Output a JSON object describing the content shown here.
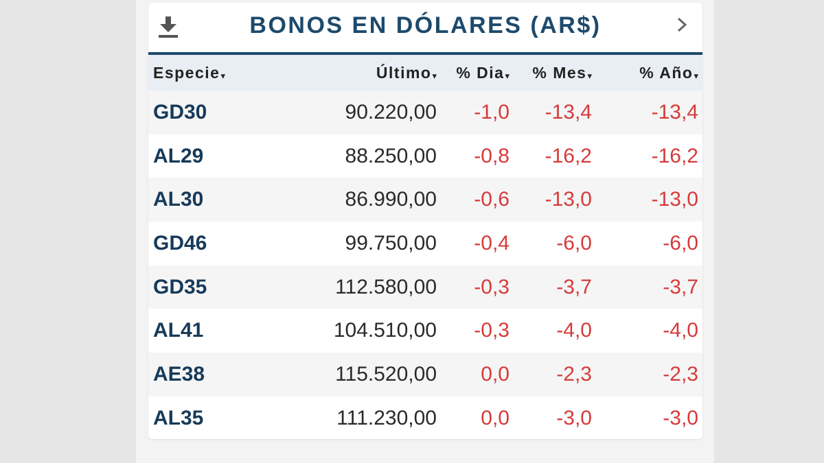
{
  "widget": {
    "title": "BONOS EN DÓLARES (AR$)",
    "download_icon": "download-icon",
    "next_icon": "chevron-right-icon",
    "colors": {
      "title": "#1d4a6c",
      "ticker": "#173a5a",
      "negative": "#d63a3a",
      "header_bg": "#e9eef4"
    }
  },
  "table": {
    "headers": {
      "especie": "Especie",
      "ultimo": "Último",
      "dia": "% Dia",
      "mes": "% Mes",
      "ano": "% Año",
      "sort_arrow": "▾"
    },
    "rows": [
      {
        "especie": "GD30",
        "ultimo": "90.220,00",
        "dia": "-1,0",
        "mes": "-13,4",
        "ano": "-13,4"
      },
      {
        "especie": "AL29",
        "ultimo": "88.250,00",
        "dia": "-0,8",
        "mes": "-16,2",
        "ano": "-16,2"
      },
      {
        "especie": "AL30",
        "ultimo": "86.990,00",
        "dia": "-0,6",
        "mes": "-13,0",
        "ano": "-13,0"
      },
      {
        "especie": "GD46",
        "ultimo": "99.750,00",
        "dia": "-0,4",
        "mes": "-6,0",
        "ano": "-6,0"
      },
      {
        "especie": "GD35",
        "ultimo": "112.580,00",
        "dia": "-0,3",
        "mes": "-3,7",
        "ano": "-3,7"
      },
      {
        "especie": "AL41",
        "ultimo": "104.510,00",
        "dia": "-0,3",
        "mes": "-4,0",
        "ano": "-4,0"
      },
      {
        "especie": "AE38",
        "ultimo": "115.520,00",
        "dia": "0,0",
        "mes": "-2,3",
        "ano": "-2,3"
      },
      {
        "especie": "AL35",
        "ultimo": "111.230,00",
        "dia": "0,0",
        "mes": "-3,0",
        "ano": "-3,0"
      }
    ]
  }
}
